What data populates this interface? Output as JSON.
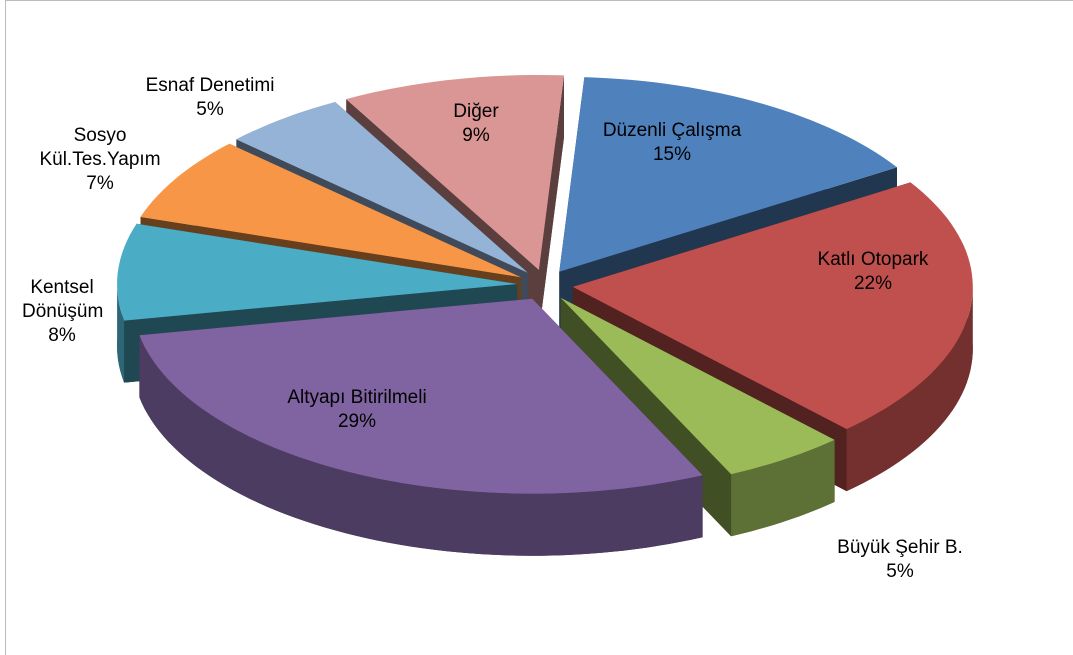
{
  "chart_data": {
    "type": "pie",
    "explode": true,
    "three_d": true,
    "categories": [
      "Düzenli Çalışma",
      "Katlı Otopark",
      "Büyük Şehir B.",
      "Altyapı Bitirilmeli",
      "Kentsel Dönüşüm",
      "Sosyo Kül.Tes.Yapım",
      "Esnaf Denetimi",
      "Diğer"
    ],
    "values": [
      15,
      22,
      5,
      29,
      8,
      7,
      5,
      9
    ],
    "value_labels": [
      "15%",
      "22%",
      "5%",
      "29%",
      "8%",
      "7%",
      "5%",
      "9%"
    ],
    "colors": [
      "#4f81bd",
      "#c0504d",
      "#9bbb59",
      "#8064a2",
      "#4bacc6",
      "#f79646",
      "#95b3d7",
      "#d99694"
    ]
  }
}
